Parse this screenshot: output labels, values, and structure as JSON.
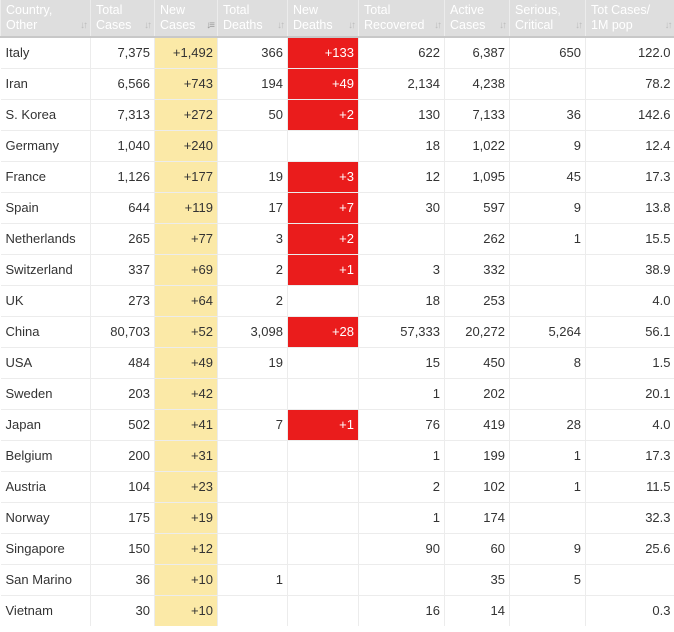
{
  "colors": {
    "header_bg": "#dedede",
    "new_cases_bg": "#fbe9a7",
    "new_deaths_bg": "#ea1c1c"
  },
  "columns": [
    {
      "line1": "Country,",
      "line2": "Other"
    },
    {
      "line1": "Total",
      "line2": "Cases"
    },
    {
      "line1": "New",
      "line2": "Cases"
    },
    {
      "line1": "Total",
      "line2": "Deaths"
    },
    {
      "line1": "New",
      "line2": "Deaths"
    },
    {
      "line1": "Total",
      "line2": "Recovered"
    },
    {
      "line1": "Active",
      "line2": "Cases"
    },
    {
      "line1": "Serious,",
      "line2": "Critical"
    },
    {
      "line1": "Tot Cases/",
      "line2": "1M pop"
    }
  ],
  "sort_icon": "sort-arrows-icon",
  "active_sort_column": "new_cases",
  "rows": [
    {
      "country": "Italy",
      "total_cases": "7,375",
      "new_cases": "+1,492",
      "total_deaths": "366",
      "new_deaths": "+133",
      "total_recovered": "622",
      "active_cases": "6,387",
      "serious_critical": "650",
      "tot_cases_per_1m": "122.0"
    },
    {
      "country": "Iran",
      "total_cases": "6,566",
      "new_cases": "+743",
      "total_deaths": "194",
      "new_deaths": "+49",
      "total_recovered": "2,134",
      "active_cases": "4,238",
      "serious_critical": "",
      "tot_cases_per_1m": "78.2"
    },
    {
      "country": "S. Korea",
      "total_cases": "7,313",
      "new_cases": "+272",
      "total_deaths": "50",
      "new_deaths": "+2",
      "total_recovered": "130",
      "active_cases": "7,133",
      "serious_critical": "36",
      "tot_cases_per_1m": "142.6"
    },
    {
      "country": "Germany",
      "total_cases": "1,040",
      "new_cases": "+240",
      "total_deaths": "",
      "new_deaths": "",
      "total_recovered": "18",
      "active_cases": "1,022",
      "serious_critical": "9",
      "tot_cases_per_1m": "12.4"
    },
    {
      "country": "France",
      "total_cases": "1,126",
      "new_cases": "+177",
      "total_deaths": "19",
      "new_deaths": "+3",
      "total_recovered": "12",
      "active_cases": "1,095",
      "serious_critical": "45",
      "tot_cases_per_1m": "17.3"
    },
    {
      "country": "Spain",
      "total_cases": "644",
      "new_cases": "+119",
      "total_deaths": "17",
      "new_deaths": "+7",
      "total_recovered": "30",
      "active_cases": "597",
      "serious_critical": "9",
      "tot_cases_per_1m": "13.8"
    },
    {
      "country": "Netherlands",
      "total_cases": "265",
      "new_cases": "+77",
      "total_deaths": "3",
      "new_deaths": "+2",
      "total_recovered": "",
      "active_cases": "262",
      "serious_critical": "1",
      "tot_cases_per_1m": "15.5"
    },
    {
      "country": "Switzerland",
      "total_cases": "337",
      "new_cases": "+69",
      "total_deaths": "2",
      "new_deaths": "+1",
      "total_recovered": "3",
      "active_cases": "332",
      "serious_critical": "",
      "tot_cases_per_1m": "38.9"
    },
    {
      "country": "UK",
      "total_cases": "273",
      "new_cases": "+64",
      "total_deaths": "2",
      "new_deaths": "",
      "total_recovered": "18",
      "active_cases": "253",
      "serious_critical": "",
      "tot_cases_per_1m": "4.0"
    },
    {
      "country": "China",
      "total_cases": "80,703",
      "new_cases": "+52",
      "total_deaths": "3,098",
      "new_deaths": "+28",
      "total_recovered": "57,333",
      "active_cases": "20,272",
      "serious_critical": "5,264",
      "tot_cases_per_1m": "56.1"
    },
    {
      "country": "USA",
      "total_cases": "484",
      "new_cases": "+49",
      "total_deaths": "19",
      "new_deaths": "",
      "total_recovered": "15",
      "active_cases": "450",
      "serious_critical": "8",
      "tot_cases_per_1m": "1.5"
    },
    {
      "country": "Sweden",
      "total_cases": "203",
      "new_cases": "+42",
      "total_deaths": "",
      "new_deaths": "",
      "total_recovered": "1",
      "active_cases": "202",
      "serious_critical": "",
      "tot_cases_per_1m": "20.1"
    },
    {
      "country": "Japan",
      "total_cases": "502",
      "new_cases": "+41",
      "total_deaths": "7",
      "new_deaths": "+1",
      "total_recovered": "76",
      "active_cases": "419",
      "serious_critical": "28",
      "tot_cases_per_1m": "4.0"
    },
    {
      "country": "Belgium",
      "total_cases": "200",
      "new_cases": "+31",
      "total_deaths": "",
      "new_deaths": "",
      "total_recovered": "1",
      "active_cases": "199",
      "serious_critical": "1",
      "tot_cases_per_1m": "17.3"
    },
    {
      "country": "Austria",
      "total_cases": "104",
      "new_cases": "+23",
      "total_deaths": "",
      "new_deaths": "",
      "total_recovered": "2",
      "active_cases": "102",
      "serious_critical": "1",
      "tot_cases_per_1m": "11.5"
    },
    {
      "country": "Norway",
      "total_cases": "175",
      "new_cases": "+19",
      "total_deaths": "",
      "new_deaths": "",
      "total_recovered": "1",
      "active_cases": "174",
      "serious_critical": "",
      "tot_cases_per_1m": "32.3"
    },
    {
      "country": "Singapore",
      "total_cases": "150",
      "new_cases": "+12",
      "total_deaths": "",
      "new_deaths": "",
      "total_recovered": "90",
      "active_cases": "60",
      "serious_critical": "9",
      "tot_cases_per_1m": "25.6"
    },
    {
      "country": "San Marino",
      "total_cases": "36",
      "new_cases": "+10",
      "total_deaths": "1",
      "new_deaths": "",
      "total_recovered": "",
      "active_cases": "35",
      "serious_critical": "5",
      "tot_cases_per_1m": ""
    },
    {
      "country": "Vietnam",
      "total_cases": "30",
      "new_cases": "+10",
      "total_deaths": "",
      "new_deaths": "",
      "total_recovered": "16",
      "active_cases": "14",
      "serious_critical": "",
      "tot_cases_per_1m": "0.3"
    }
  ]
}
